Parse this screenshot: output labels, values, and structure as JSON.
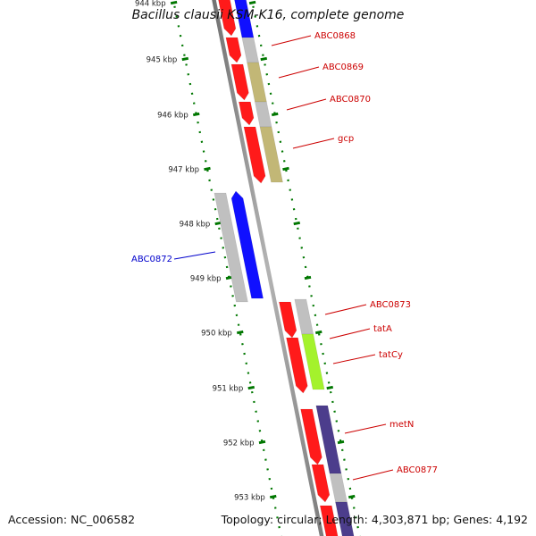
{
  "title": "Bacillus clausii KSM-K16, complete genome",
  "accession": "Accession: NC_006582",
  "topology": "Topology: circular; Length: 4,303,871 bp; Genes: 4,192",
  "colors": {
    "backbone": "#8c8c8c",
    "scale": "#007700",
    "label_red": "#cc0000",
    "label_blue": "#0000cc",
    "gene_red": "#ff1a1a",
    "gene_blue": "#1010ff",
    "gene_grey": "#c0c0c0",
    "gene_olive": "#c2b776",
    "gene_lime": "#a4f22c",
    "gene_navy": "#4c3d8c"
  },
  "scale_labels": [
    "944 kbp",
    "945 kbp",
    "946 kbp",
    "947 kbp",
    "948 kbp",
    "949 kbp",
    "950 kbp",
    "951 kbp",
    "952 kbp",
    "953 kbp"
  ],
  "gene_labels": [
    {
      "text": "ABC0868",
      "color": "red"
    },
    {
      "text": "ABC0869",
      "color": "red"
    },
    {
      "text": "ABC0870",
      "color": "red"
    },
    {
      "text": "gcp",
      "color": "red"
    },
    {
      "text": "ABC0872",
      "color": "blue"
    },
    {
      "text": "ABC0873",
      "color": "red"
    },
    {
      "text": "tatA",
      "color": "red"
    },
    {
      "text": "tatCy",
      "color": "red"
    },
    {
      "text": "metN",
      "color": "red"
    },
    {
      "text": "ABC0877",
      "color": "red"
    }
  ]
}
